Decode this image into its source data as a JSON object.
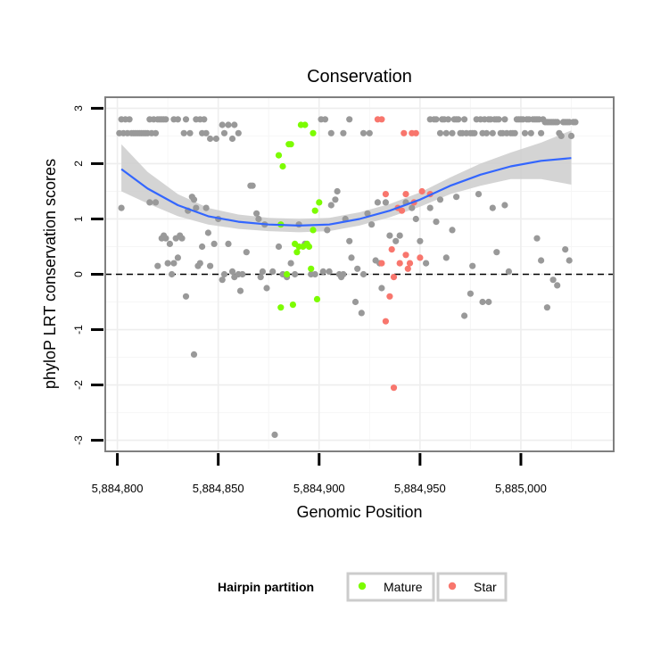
{
  "chart_data": {
    "type": "scatter",
    "title": "Conservation",
    "xlabel": "Genomic Position",
    "ylabel": "phyloP LRT conservation scores",
    "xlim": [
      5884794,
      5885046
    ],
    "ylim": [
      -3.2,
      3.2
    ],
    "x_ticks": [
      5884800,
      5884850,
      5884900,
      5884950,
      5885000
    ],
    "x_tick_labels": [
      "5,884,800",
      "5,884,850",
      "5,884,900",
      "5,884,950",
      "5,885,000"
    ],
    "y_ticks": [
      -3,
      -2,
      -1,
      0,
      1,
      2,
      3
    ],
    "y_tick_labels": [
      "-3",
      "-2",
      "-1",
      "0",
      "1",
      "2",
      "3"
    ],
    "reference_line_y": 0,
    "grid": true,
    "legend": {
      "title": "Hairpin partition",
      "position": "bottom",
      "entries": [
        {
          "label": "Mature",
          "color": "#7cfc00"
        },
        {
          "label": "Star",
          "color": "#f8766d"
        }
      ]
    },
    "colors": {
      "other": "#999999",
      "mature": "#7cfc00",
      "star": "#f8766d",
      "smooth": "#3366ff",
      "ribbon": "#cccccc"
    },
    "series": [
      {
        "name": "Other",
        "points": [
          [
            5884801,
            2.55
          ],
          [
            5884802,
            2.8
          ],
          [
            5884803,
            2.55
          ],
          [
            5884804,
            2.8
          ],
          [
            5884805,
            2.55
          ],
          [
            5884806,
            2.8
          ],
          [
            5884807,
            2.55
          ],
          [
            5884808,
            2.55
          ],
          [
            5884809,
            2.55
          ],
          [
            5884810,
            2.55
          ],
          [
            5884811,
            2.55
          ],
          [
            5884812,
            2.55
          ],
          [
            5884813,
            2.55
          ],
          [
            5884814,
            2.55
          ],
          [
            5884815,
            2.55
          ],
          [
            5884816,
            2.8
          ],
          [
            5884817,
            2.55
          ],
          [
            5884818,
            2.8
          ],
          [
            5884819,
            2.55
          ],
          [
            5884820,
            2.8
          ],
          [
            5884821,
            2.8
          ],
          [
            5884822,
            2.8
          ],
          [
            5884823,
            2.8
          ],
          [
            5884824,
            2.8
          ],
          [
            5884828,
            2.8
          ],
          [
            5884830,
            2.8
          ],
          [
            5884833,
            2.55
          ],
          [
            5884834,
            2.8
          ],
          [
            5884836,
            2.55
          ],
          [
            5884839,
            2.8
          ],
          [
            5884841,
            2.8
          ],
          [
            5884842,
            2.55
          ],
          [
            5884843,
            2.8
          ],
          [
            5884844,
            2.55
          ],
          [
            5884846,
            2.45
          ],
          [
            5884849,
            2.45
          ],
          [
            5884852,
            2.7
          ],
          [
            5884853,
            2.55
          ],
          [
            5884855,
            2.7
          ],
          [
            5884857,
            2.45
          ],
          [
            5884858,
            2.7
          ],
          [
            5884860,
            2.55
          ],
          [
            5884901,
            2.8
          ],
          [
            5884903,
            2.8
          ],
          [
            5884906,
            2.55
          ],
          [
            5884912,
            2.55
          ],
          [
            5884915,
            2.8
          ],
          [
            5884922,
            2.55
          ],
          [
            5884925,
            2.55
          ],
          [
            5884955,
            2.8
          ],
          [
            5884957,
            2.8
          ],
          [
            5884958,
            2.8
          ],
          [
            5884960,
            2.55
          ],
          [
            5884961,
            2.8
          ],
          [
            5884962,
            2.8
          ],
          [
            5884963,
            2.55
          ],
          [
            5884964,
            2.8
          ],
          [
            5884966,
            2.55
          ],
          [
            5884967,
            2.8
          ],
          [
            5884968,
            2.8
          ],
          [
            5884969,
            2.8
          ],
          [
            5884970,
            2.55
          ],
          [
            5884971,
            2.55
          ],
          [
            5884972,
            2.8
          ],
          [
            5884973,
            2.55
          ],
          [
            5884975,
            2.55
          ],
          [
            5884976,
            2.55
          ],
          [
            5884977,
            2.55
          ],
          [
            5884978,
            2.8
          ],
          [
            5884980,
            2.8
          ],
          [
            5884981,
            2.55
          ],
          [
            5884982,
            2.8
          ],
          [
            5884983,
            2.55
          ],
          [
            5884984,
            2.8
          ],
          [
            5884985,
            2.8
          ],
          [
            5884986,
            2.55
          ],
          [
            5884987,
            2.8
          ],
          [
            5884988,
            2.8
          ],
          [
            5884989,
            2.8
          ],
          [
            5884990,
            2.55
          ],
          [
            5884991,
            2.55
          ],
          [
            5884992,
            2.8
          ],
          [
            5884993,
            2.55
          ],
          [
            5884995,
            2.55
          ],
          [
            5884996,
            2.55
          ],
          [
            5884997,
            2.55
          ],
          [
            5884998,
            2.8
          ],
          [
            5884999,
            2.8
          ],
          [
            5885000,
            2.8
          ],
          [
            5885001,
            2.8
          ],
          [
            5885002,
            2.55
          ],
          [
            5885003,
            2.8
          ],
          [
            5885004,
            2.8
          ],
          [
            5885005,
            2.55
          ],
          [
            5885006,
            2.8
          ],
          [
            5885007,
            2.8
          ],
          [
            5885008,
            2.8
          ],
          [
            5885009,
            2.8
          ],
          [
            5885010,
            2.55
          ],
          [
            5885011,
            2.8
          ],
          [
            5885012,
            2.75
          ],
          [
            5885013,
            2.75
          ],
          [
            5885014,
            2.75
          ],
          [
            5885015,
            2.75
          ],
          [
            5885016,
            2.75
          ],
          [
            5885017,
            2.75
          ],
          [
            5885018,
            2.75
          ],
          [
            5885019,
            2.55
          ],
          [
            5885020,
            2.5
          ],
          [
            5885021,
            2.75
          ],
          [
            5885022,
            2.75
          ],
          [
            5885023,
            2.75
          ],
          [
            5885024,
            2.75
          ],
          [
            5885025,
            2.5
          ],
          [
            5885026,
            2.75
          ],
          [
            5885027,
            2.75
          ],
          [
            5884802,
            1.2
          ],
          [
            5884816,
            1.3
          ],
          [
            5884819,
            1.3
          ],
          [
            5884820,
            0.15
          ],
          [
            5884822,
            0.65
          ],
          [
            5884823,
            0.7
          ],
          [
            5884824,
            0.65
          ],
          [
            5884825,
            0.2
          ],
          [
            5884826,
            0.55
          ],
          [
            5884827,
            0.0
          ],
          [
            5884828,
            0.2
          ],
          [
            5884829,
            0.65
          ],
          [
            5884830,
            0.3
          ],
          [
            5884831,
            0.7
          ],
          [
            5884832,
            0.65
          ],
          [
            5884834,
            -0.4
          ],
          [
            5884835,
            1.15
          ],
          [
            5884837,
            1.4
          ],
          [
            5884838,
            1.35
          ],
          [
            5884839,
            1.2
          ],
          [
            5884840,
            0.15
          ],
          [
            5884841,
            0.2
          ],
          [
            5884842,
            0.5
          ],
          [
            5884844,
            1.2
          ],
          [
            5884845,
            0.75
          ],
          [
            5884846,
            0.15
          ],
          [
            5884848,
            0.55
          ],
          [
            5884850,
            1.0
          ],
          [
            5884852,
            -0.1
          ],
          [
            5884853,
            0.0
          ],
          [
            5884855,
            0.55
          ],
          [
            5884857,
            0.05
          ],
          [
            5884858,
            -0.05
          ],
          [
            5884860,
            0.0
          ],
          [
            5884861,
            -0.3
          ],
          [
            5884862,
            0.0
          ],
          [
            5884864,
            0.4
          ],
          [
            5884866,
            1.6
          ],
          [
            5884867,
            1.6
          ],
          [
            5884869,
            1.1
          ],
          [
            5884870,
            1.0
          ],
          [
            5884871,
            -0.05
          ],
          [
            5884872,
            0.05
          ],
          [
            5884873,
            0.9
          ],
          [
            5884874,
            -0.25
          ],
          [
            5884877,
            0.05
          ],
          [
            5884878,
            -2.9
          ],
          [
            5884880,
            0.5
          ],
          [
            5884882,
            0.0
          ],
          [
            5884884,
            -0.05
          ],
          [
            5884886,
            0.2
          ],
          [
            5884888,
            0.0
          ],
          [
            5884890,
            0.9
          ],
          [
            5884893,
            0.55
          ],
          [
            5884896,
            0.0
          ],
          [
            5884898,
            0.0
          ],
          [
            5884902,
            0.05
          ],
          [
            5884904,
            0.8
          ],
          [
            5884905,
            0.05
          ],
          [
            5884906,
            1.25
          ],
          [
            5884908,
            1.35
          ],
          [
            5884909,
            1.5
          ],
          [
            5884910,
            0.0
          ],
          [
            5884911,
            -0.05
          ],
          [
            5884912,
            0.0
          ],
          [
            5884913,
            1.0
          ],
          [
            5884915,
            0.6
          ],
          [
            5884916,
            0.3
          ],
          [
            5884918,
            -0.5
          ],
          [
            5884919,
            0.1
          ],
          [
            5884921,
            -0.7
          ],
          [
            5884922,
            0.0
          ],
          [
            5884924,
            1.1
          ],
          [
            5884926,
            0.9
          ],
          [
            5884928,
            0.25
          ],
          [
            5884929,
            1.3
          ],
          [
            5884930,
            0.2
          ],
          [
            5884931,
            -0.25
          ],
          [
            5884933,
            1.3
          ],
          [
            5884935,
            0.7
          ],
          [
            5884938,
            0.6
          ],
          [
            5884940,
            0.7
          ],
          [
            5884943,
            1.3
          ],
          [
            5884946,
            1.2
          ],
          [
            5884948,
            1.0
          ],
          [
            5884950,
            0.6
          ],
          [
            5884953,
            0.2
          ],
          [
            5884955,
            1.2
          ],
          [
            5884958,
            0.95
          ],
          [
            5884960,
            1.35
          ],
          [
            5884963,
            0.3
          ],
          [
            5884966,
            0.8
          ],
          [
            5884968,
            1.4
          ],
          [
            5884972,
            -0.75
          ],
          [
            5884975,
            -0.35
          ],
          [
            5884976,
            0.15
          ],
          [
            5884979,
            1.45
          ],
          [
            5884981,
            -0.5
          ],
          [
            5884984,
            -0.5
          ],
          [
            5884986,
            1.2
          ],
          [
            5884988,
            0.4
          ],
          [
            5884992,
            1.25
          ],
          [
            5884994,
            0.05
          ],
          [
            5885008,
            0.65
          ],
          [
            5885010,
            0.25
          ],
          [
            5885013,
            -0.6
          ],
          [
            5885016,
            -0.1
          ],
          [
            5885018,
            -0.2
          ],
          [
            5885022,
            0.45
          ],
          [
            5885024,
            0.25
          ],
          [
            5884838,
            -1.45
          ]
        ]
      },
      {
        "name": "Mature",
        "points": [
          [
            5884880,
            2.15
          ],
          [
            5884882,
            1.95
          ],
          [
            5884885,
            2.35
          ],
          [
            5884886,
            2.35
          ],
          [
            5884891,
            2.7
          ],
          [
            5884893,
            2.7
          ],
          [
            5884897,
            2.55
          ],
          [
            5884881,
            0.9
          ],
          [
            5884890,
            0.5
          ],
          [
            5884892,
            0.5
          ],
          [
            5884894,
            0.55
          ],
          [
            5884895,
            0.5
          ],
          [
            5884888,
            0.55
          ],
          [
            5884889,
            0.4
          ],
          [
            5884898,
            1.15
          ],
          [
            5884900,
            1.3
          ],
          [
            5884897,
            0.8
          ],
          [
            5884896,
            0.1
          ],
          [
            5884884,
            0.0
          ],
          [
            5884881,
            -0.6
          ],
          [
            5884887,
            -0.55
          ],
          [
            5884899,
            -0.45
          ]
        ]
      },
      {
        "name": "Star",
        "points": [
          [
            5884929,
            2.8
          ],
          [
            5884931,
            2.8
          ],
          [
            5884942,
            2.55
          ],
          [
            5884946,
            2.55
          ],
          [
            5884948,
            2.55
          ],
          [
            5884933,
            1.45
          ],
          [
            5884943,
            1.45
          ],
          [
            5884947,
            1.3
          ],
          [
            5884951,
            1.5
          ],
          [
            5884955,
            1.45
          ],
          [
            5884939,
            1.2
          ],
          [
            5884941,
            1.15
          ],
          [
            5884931,
            0.2
          ],
          [
            5884936,
            0.45
          ],
          [
            5884940,
            0.2
          ],
          [
            5884943,
            0.35
          ],
          [
            5884945,
            0.2
          ],
          [
            5884944,
            0.1
          ],
          [
            5884950,
            0.3
          ],
          [
            5884937,
            -0.05
          ],
          [
            5884935,
            -0.4
          ],
          [
            5884933,
            -0.85
          ],
          [
            5884937,
            -2.05
          ]
        ]
      }
    ],
    "smooth": {
      "x": [
        5884802,
        5884815,
        5884830,
        5884845,
        5884860,
        5884875,
        5884890,
        5884905,
        5884920,
        5884935,
        5884950,
        5884965,
        5884980,
        5884995,
        5885010,
        5885025
      ],
      "y": [
        1.9,
        1.55,
        1.25,
        1.05,
        0.95,
        0.9,
        0.88,
        0.9,
        1.0,
        1.15,
        1.35,
        1.6,
        1.8,
        1.95,
        2.05,
        2.1
      ],
      "lower": [
        1.5,
        1.28,
        1.05,
        0.9,
        0.82,
        0.78,
        0.76,
        0.78,
        0.88,
        1.03,
        1.22,
        1.45,
        1.6,
        1.72,
        1.72,
        1.62
      ],
      "upper": [
        2.35,
        1.85,
        1.45,
        1.2,
        1.08,
        1.02,
        1.0,
        1.02,
        1.12,
        1.27,
        1.48,
        1.75,
        2.0,
        2.2,
        2.38,
        2.6
      ]
    }
  }
}
